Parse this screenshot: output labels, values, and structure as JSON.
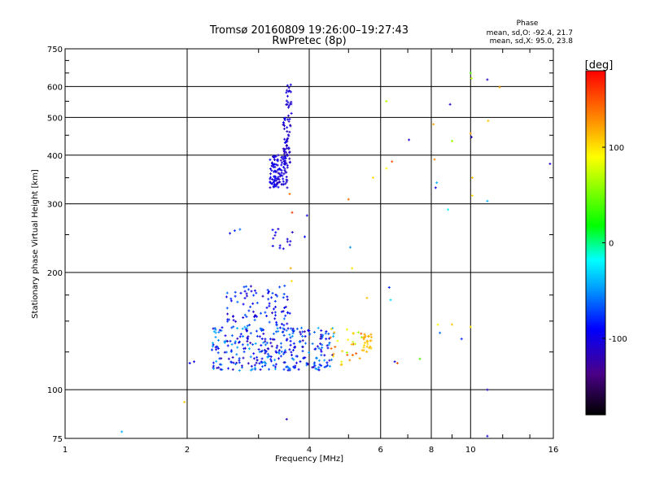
{
  "chart_data": {
    "type": "scatter",
    "title": "Tromsø 20160809 19:26:00–19:27:43",
    "subtitle": "RwPretec (8p)",
    "xlabel": "Frequency [MHz]",
    "ylabel": "Stationary phase Virtual Height [km]",
    "x_scale": "log",
    "y_scale": "log",
    "xlim": [
      1,
      16
    ],
    "ylim": [
      75,
      750
    ],
    "x_ticks": [
      1,
      2,
      4,
      6,
      8,
      10,
      16
    ],
    "x_tick_labels": [
      "1",
      "2",
      "4",
      "6",
      "8",
      "10",
      "16"
    ],
    "y_ticks": [
      75,
      100,
      200,
      300,
      400,
      500,
      600,
      750
    ],
    "y_tick_labels": [
      "75",
      "100",
      "200",
      "300",
      "400",
      "500",
      "600",
      "750"
    ],
    "grid": true,
    "phase_stats": {
      "header": "Phase",
      "line_o": "mean, sd,O: -92.4, 21.7",
      "line_x": "mean, sd,X:  95.0, 23.8"
    },
    "colorbar": {
      "label": "[deg]",
      "range": [
        -180,
        180
      ],
      "ticks": [
        100,
        0,
        -100
      ],
      "tick_labels": [
        "100",
        "0",
        "-100"
      ]
    },
    "clusters": [
      {
        "f": [
          3.2,
          3.55
        ],
        "h": [
          330,
          400
        ],
        "phase": [
          -120,
          -90
        ],
        "n": 110
      },
      {
        "f": [
          3.45,
          3.6
        ],
        "h": [
          380,
          500
        ],
        "phase": [
          -120,
          -90
        ],
        "n": 50
      },
      {
        "f": [
          3.5,
          3.62
        ],
        "h": [
          490,
          610
        ],
        "phase": [
          -115,
          -95
        ],
        "n": 20
      },
      {
        "f": [
          2.3,
          4.6
        ],
        "h": [
          112,
          145
        ],
        "phase": [
          -120,
          -40
        ],
        "n": 320
      },
      {
        "f": [
          2.5,
          3.6
        ],
        "h": [
          145,
          185
        ],
        "phase": [
          -115,
          -60
        ],
        "n": 90
      },
      {
        "f": [
          3.25,
          3.65
        ],
        "h": [
          230,
          260
        ],
        "phase": [
          -115,
          -85
        ],
        "n": 14
      },
      {
        "f": [
          4.5,
          5.4
        ],
        "h": [
          115,
          145
        ],
        "phase": [
          60,
          150
        ],
        "n": 30
      },
      {
        "f": [
          5.4,
          5.7
        ],
        "h": [
          125,
          140
        ],
        "phase": [
          100,
          125
        ],
        "n": 25
      }
    ],
    "points": [
      {
        "x": 1.38,
        "y": 78,
        "phase": -40
      },
      {
        "x": 1.97,
        "y": 93,
        "phase": 110
      },
      {
        "x": 2.03,
        "y": 117,
        "phase": -90
      },
      {
        "x": 2.08,
        "y": 118,
        "phase": -100
      },
      {
        "x": 2.55,
        "y": 252,
        "phase": -100
      },
      {
        "x": 2.62,
        "y": 256,
        "phase": -80
      },
      {
        "x": 2.7,
        "y": 258,
        "phase": -60
      },
      {
        "x": 3.52,
        "y": 84,
        "phase": -110
      },
      {
        "x": 3.58,
        "y": 318,
        "phase": 140
      },
      {
        "x": 3.63,
        "y": 285,
        "phase": 160
      },
      {
        "x": 3.6,
        "y": 205,
        "phase": 120
      },
      {
        "x": 3.62,
        "y": 190,
        "phase": 100
      },
      {
        "x": 3.9,
        "y": 247,
        "phase": -90
      },
      {
        "x": 3.95,
        "y": 280,
        "phase": -100
      },
      {
        "x": 5.05,
        "y": 232,
        "phase": -50
      },
      {
        "x": 5.1,
        "y": 205,
        "phase": 100
      },
      {
        "x": 5.0,
        "y": 308,
        "phase": 140
      },
      {
        "x": 5.55,
        "y": 172,
        "phase": 110
      },
      {
        "x": 5.75,
        "y": 350,
        "phase": 100
      },
      {
        "x": 6.2,
        "y": 550,
        "phase": 70
      },
      {
        "x": 6.2,
        "y": 370,
        "phase": 90
      },
      {
        "x": 6.3,
        "y": 183,
        "phase": -80
      },
      {
        "x": 6.35,
        "y": 170,
        "phase": -30
      },
      {
        "x": 6.4,
        "y": 385,
        "phase": 150
      },
      {
        "x": 6.5,
        "y": 118,
        "phase": -110
      },
      {
        "x": 6.6,
        "y": 117,
        "phase": 150
      },
      {
        "x": 7.05,
        "y": 438,
        "phase": -110
      },
      {
        "x": 7.5,
        "y": 120,
        "phase": 40
      },
      {
        "x": 8.1,
        "y": 480,
        "phase": 120
      },
      {
        "x": 8.15,
        "y": 390,
        "phase": 130
      },
      {
        "x": 8.2,
        "y": 330,
        "phase": -100
      },
      {
        "x": 8.25,
        "y": 340,
        "phase": -40
      },
      {
        "x": 8.3,
        "y": 147,
        "phase": 90
      },
      {
        "x": 8.4,
        "y": 140,
        "phase": -60
      },
      {
        "x": 8.8,
        "y": 290,
        "phase": -20
      },
      {
        "x": 8.9,
        "y": 540,
        "phase": -110
      },
      {
        "x": 9.0,
        "y": 435,
        "phase": 60
      },
      {
        "x": 9.0,
        "y": 147,
        "phase": 110
      },
      {
        "x": 9.5,
        "y": 135,
        "phase": -80
      },
      {
        "x": 10.0,
        "y": 650,
        "phase": 40
      },
      {
        "x": 10.05,
        "y": 630,
        "phase": 70
      },
      {
        "x": 10.0,
        "y": 455,
        "phase": 120
      },
      {
        "x": 10.05,
        "y": 445,
        "phase": -110
      },
      {
        "x": 10.1,
        "y": 350,
        "phase": 110
      },
      {
        "x": 10.1,
        "y": 315,
        "phase": 100
      },
      {
        "x": 10.0,
        "y": 145,
        "phase": 100
      },
      {
        "x": 11.0,
        "y": 625,
        "phase": -110
      },
      {
        "x": 11.05,
        "y": 490,
        "phase": 110
      },
      {
        "x": 11.0,
        "y": 305,
        "phase": -40
      },
      {
        "x": 11.0,
        "y": 100,
        "phase": -110
      },
      {
        "x": 11.0,
        "y": 76,
        "phase": -100
      },
      {
        "x": 11.8,
        "y": 598,
        "phase": 120
      },
      {
        "x": 15.7,
        "y": 380,
        "phase": -110
      }
    ]
  }
}
